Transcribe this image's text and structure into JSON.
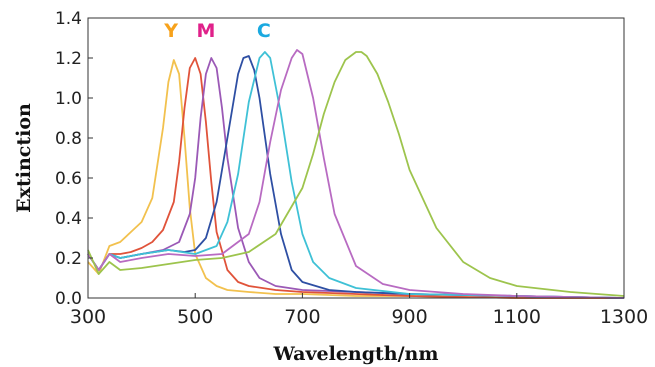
{
  "chart_data": {
    "type": "line",
    "title": "",
    "xlabel": "Wavelength/nm",
    "ylabel": "Extinction",
    "xlim": [
      300,
      1300
    ],
    "ylim": [
      0,
      1.4
    ],
    "xticks": [
      "300",
      "500",
      "700",
      "900",
      "1100",
      "1300"
    ],
    "yticks": [
      "0.0",
      "0.2",
      "0.4",
      "0.6",
      "0.8",
      "1.0",
      "1.2",
      "1.4"
    ],
    "grid": false,
    "annotations": [
      {
        "text": "Y",
        "color": "#f7a21b",
        "x": 455,
        "y": 1.34
      },
      {
        "text": "M",
        "color": "#e0218a",
        "x": 520,
        "y": 1.34
      },
      {
        "text": "C",
        "color": "#1aa9e0",
        "x": 628,
        "y": 1.34
      }
    ],
    "series": [
      {
        "color": "#f2c14e",
        "x": [
          300,
          320,
          340,
          360,
          380,
          400,
          420,
          440,
          450,
          460,
          470,
          480,
          490,
          500,
          520,
          540,
          560,
          600,
          650,
          700,
          800,
          900,
          1100,
          1300
        ],
        "y": [
          0.18,
          0.12,
          0.26,
          0.28,
          0.33,
          0.38,
          0.5,
          0.85,
          1.08,
          1.19,
          1.12,
          0.8,
          0.45,
          0.22,
          0.1,
          0.06,
          0.04,
          0.03,
          0.02,
          0.02,
          0.01,
          0.01,
          0.0,
          0.0
        ]
      },
      {
        "color": "#e0533a",
        "x": [
          300,
          320,
          340,
          360,
          380,
          400,
          420,
          440,
          460,
          470,
          480,
          490,
          500,
          510,
          520,
          530,
          540,
          560,
          580,
          600,
          650,
          700,
          800,
          900,
          1100,
          1300
        ],
        "y": [
          0.22,
          0.14,
          0.22,
          0.22,
          0.23,
          0.25,
          0.28,
          0.34,
          0.48,
          0.68,
          0.95,
          1.15,
          1.2,
          1.12,
          0.88,
          0.58,
          0.33,
          0.14,
          0.08,
          0.06,
          0.04,
          0.03,
          0.02,
          0.01,
          0.0,
          0.0
        ]
      },
      {
        "color": "#9b59b6",
        "x": [
          300,
          320,
          340,
          360,
          400,
          440,
          470,
          490,
          500,
          510,
          520,
          530,
          540,
          550,
          560,
          580,
          600,
          620,
          650,
          700,
          800,
          900,
          1100,
          1300
        ],
        "y": [
          0.22,
          0.14,
          0.22,
          0.2,
          0.22,
          0.24,
          0.28,
          0.42,
          0.6,
          0.9,
          1.12,
          1.2,
          1.15,
          0.95,
          0.7,
          0.35,
          0.18,
          0.1,
          0.06,
          0.04,
          0.03,
          0.02,
          0.01,
          0.0
        ]
      },
      {
        "color": "#2e4fa3",
        "x": [
          300,
          320,
          340,
          360,
          400,
          450,
          480,
          500,
          520,
          540,
          560,
          580,
          590,
          600,
          610,
          620,
          640,
          660,
          680,
          700,
          750,
          800,
          900,
          1100,
          1300
        ],
        "y": [
          0.22,
          0.14,
          0.22,
          0.2,
          0.22,
          0.24,
          0.23,
          0.24,
          0.3,
          0.48,
          0.8,
          1.12,
          1.2,
          1.21,
          1.14,
          1.0,
          0.62,
          0.32,
          0.14,
          0.08,
          0.04,
          0.03,
          0.02,
          0.01,
          0.0
        ]
      },
      {
        "color": "#3fc1d6",
        "x": [
          300,
          320,
          340,
          360,
          400,
          450,
          500,
          540,
          560,
          580,
          600,
          620,
          630,
          640,
          660,
          680,
          700,
          720,
          750,
          800,
          900,
          1100,
          1300
        ],
        "y": [
          0.22,
          0.14,
          0.22,
          0.2,
          0.22,
          0.24,
          0.22,
          0.26,
          0.38,
          0.62,
          0.98,
          1.2,
          1.23,
          1.2,
          0.92,
          0.58,
          0.32,
          0.18,
          0.1,
          0.05,
          0.02,
          0.01,
          0.0
        ]
      },
      {
        "color": "#b86bc2",
        "x": [
          300,
          320,
          340,
          360,
          400,
          450,
          500,
          550,
          600,
          620,
          640,
          660,
          680,
          690,
          700,
          720,
          740,
          760,
          800,
          850,
          900,
          1000,
          1100,
          1300
        ],
        "y": [
          0.22,
          0.14,
          0.22,
          0.18,
          0.2,
          0.22,
          0.21,
          0.22,
          0.32,
          0.48,
          0.78,
          1.04,
          1.2,
          1.24,
          1.22,
          1.0,
          0.7,
          0.42,
          0.16,
          0.07,
          0.04,
          0.02,
          0.01,
          0.0
        ]
      },
      {
        "color": "#9dc44d",
        "x": [
          300,
          320,
          340,
          360,
          400,
          450,
          500,
          550,
          600,
          650,
          700,
          720,
          740,
          760,
          780,
          800,
          810,
          820,
          840,
          860,
          880,
          900,
          950,
          1000,
          1050,
          1100,
          1200,
          1300
        ],
        "y": [
          0.24,
          0.12,
          0.18,
          0.14,
          0.15,
          0.17,
          0.19,
          0.2,
          0.23,
          0.32,
          0.55,
          0.72,
          0.92,
          1.08,
          1.19,
          1.23,
          1.23,
          1.21,
          1.12,
          0.98,
          0.82,
          0.64,
          0.35,
          0.18,
          0.1,
          0.06,
          0.03,
          0.01
        ]
      }
    ]
  }
}
